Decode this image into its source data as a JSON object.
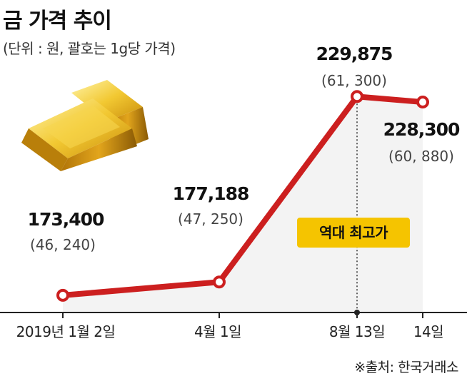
{
  "header": {
    "title": "금 가격 추이",
    "subtitle": "(단위 : 원, 괄호는 1g당 가격)"
  },
  "source": "※출처: 한국거래소",
  "colors": {
    "line": "#cc1f1f",
    "area": "#f3f3f3",
    "badge": "#f5c400",
    "axis": "#222222"
  },
  "icons": {
    "gold-bars": "gold-bars-illustration"
  },
  "annotation": {
    "label": "역대 최고가",
    "point_index": 2
  },
  "chart_data": {
    "type": "line",
    "categories": [
      "2019년 1월 2일",
      "4월 1일",
      "8월 13일",
      "14일"
    ],
    "values": [
      173400,
      177188,
      229875,
      228300
    ],
    "value_labels": [
      "173,400",
      "177,188",
      "229,875",
      "228,300"
    ],
    "per_gram": [
      46240,
      47250,
      61300,
      60880
    ],
    "per_gram_labels": [
      "(46, 240)",
      "(47, 250)",
      "(61, 300)",
      "(60, 880)"
    ],
    "title": "금 가격 추이",
    "xlabel": "",
    "ylabel": "",
    "ylim": [
      160000,
      235000
    ],
    "grid": false,
    "legend": "none"
  }
}
